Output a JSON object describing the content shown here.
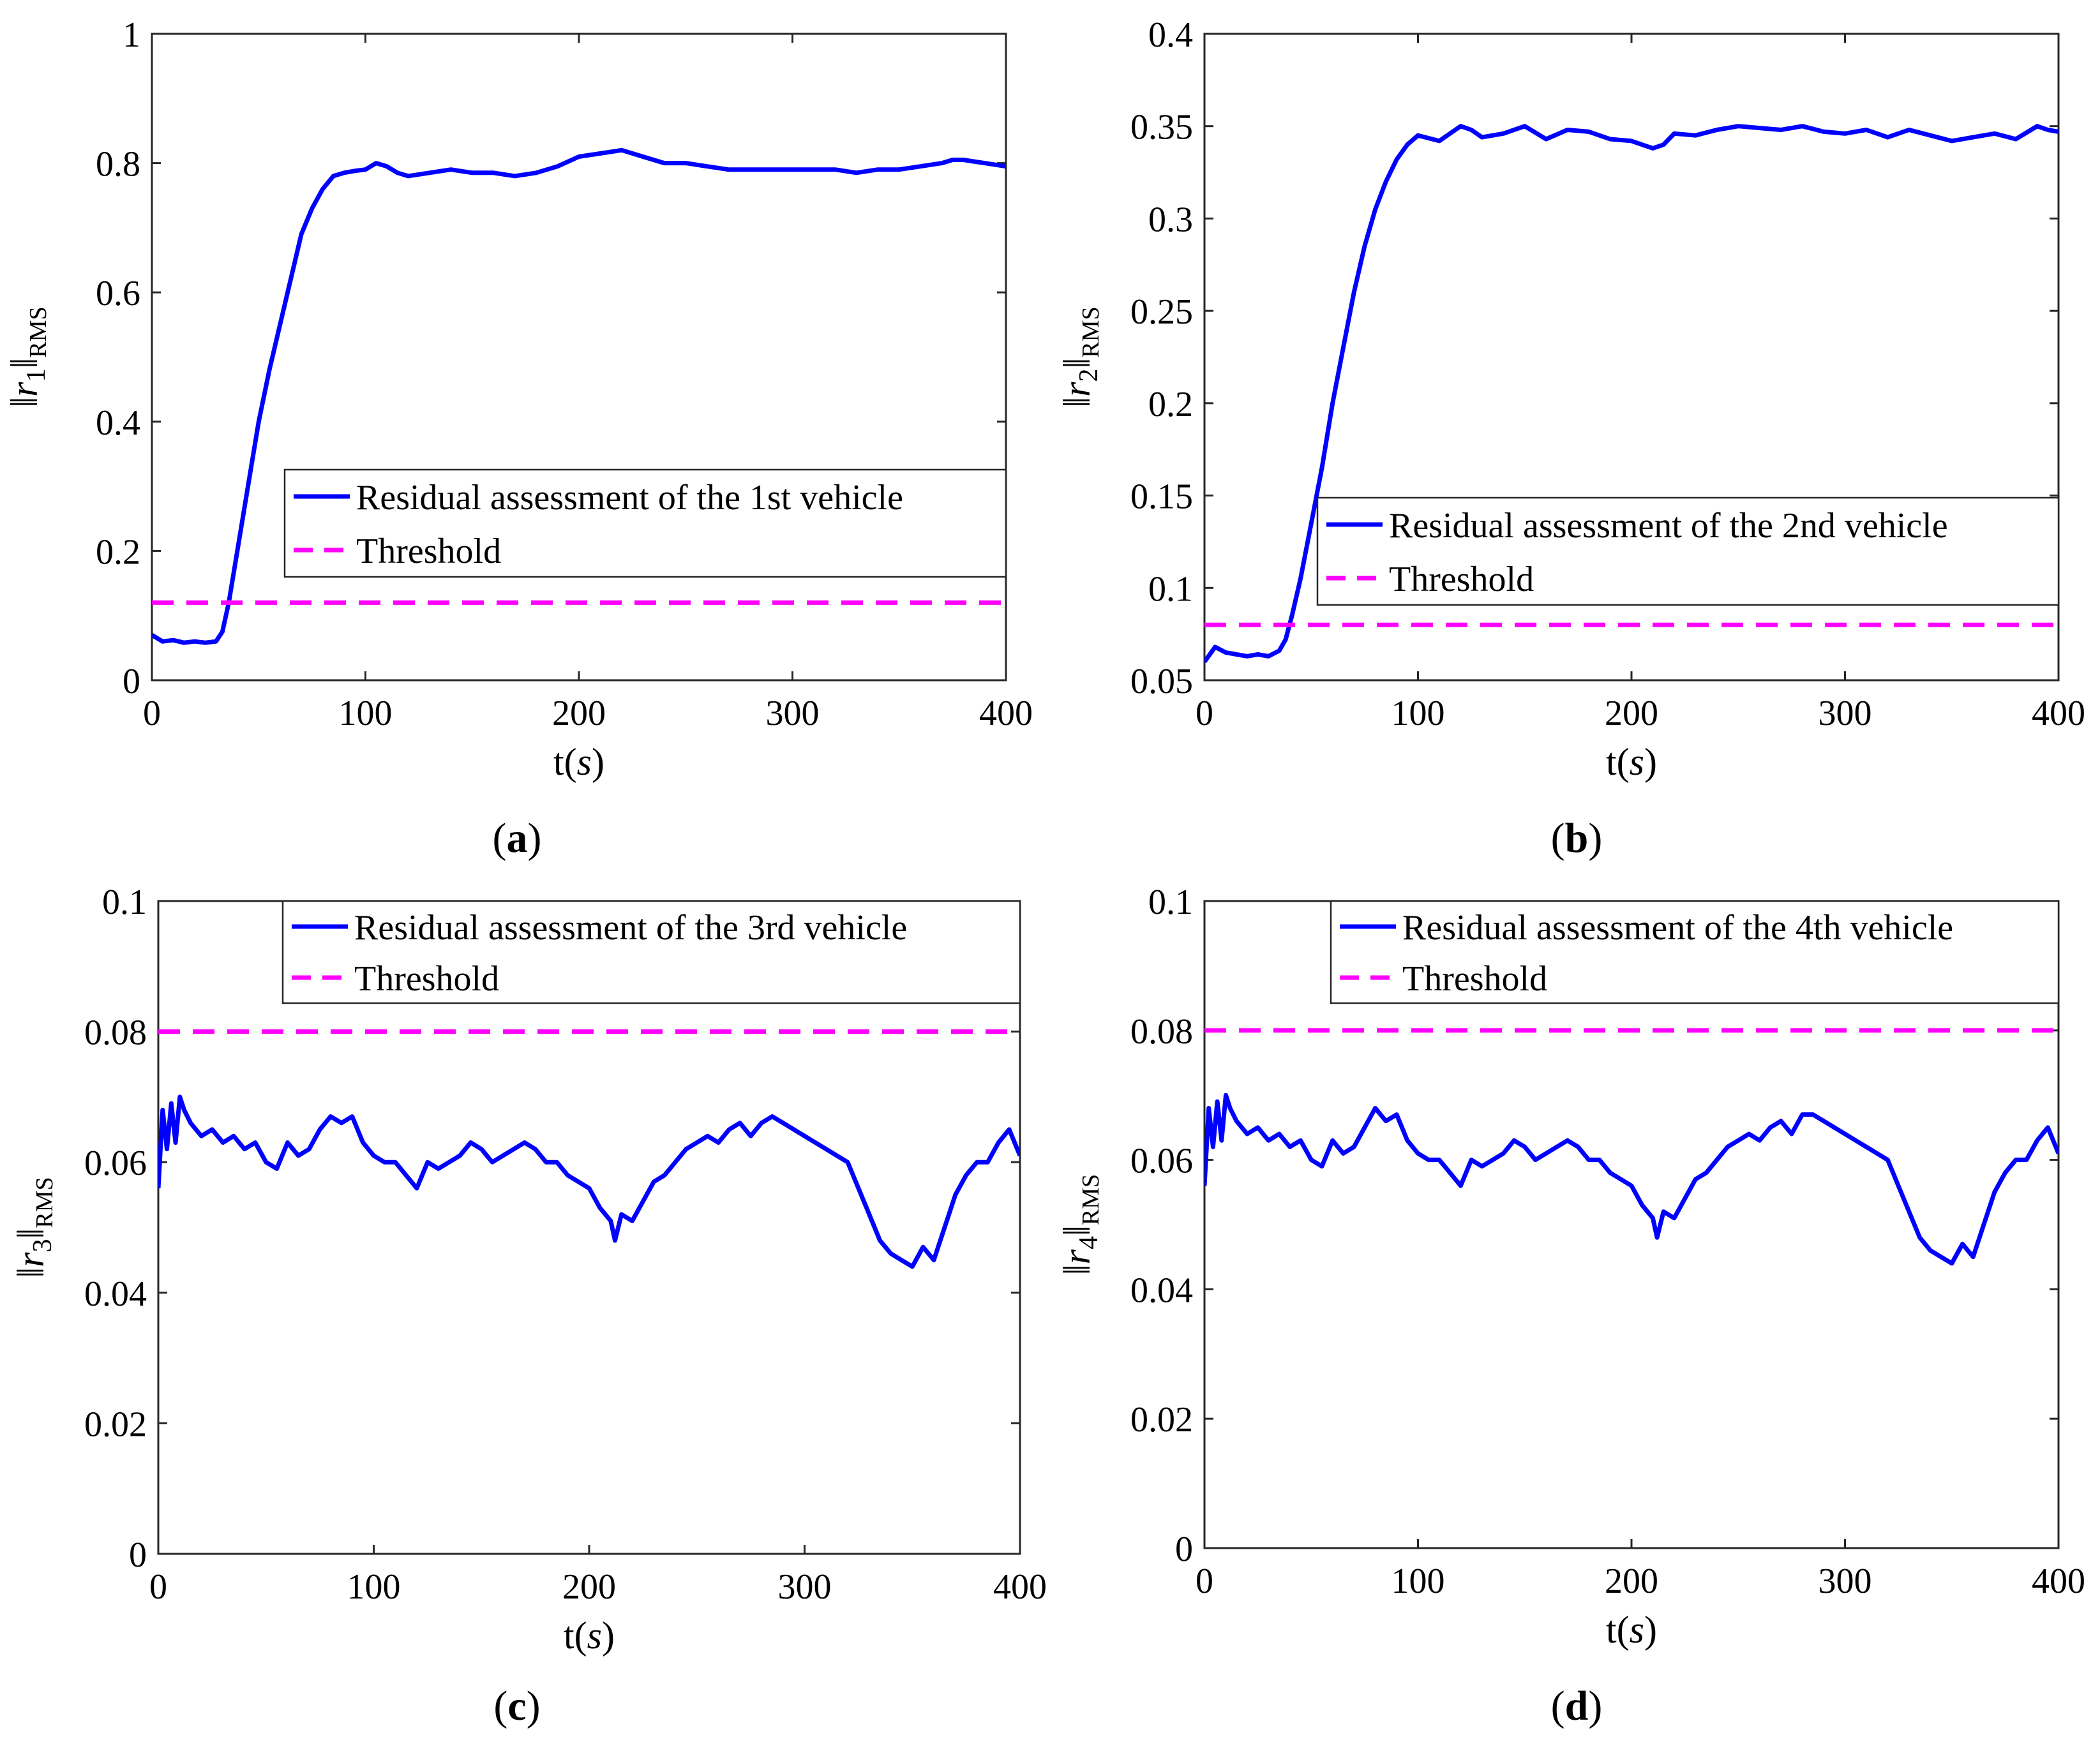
{
  "colors": {
    "series": "#0000ff",
    "threshold": "#ff00ff",
    "axis": "#262626"
  },
  "chart_data": [
    {
      "type": "line",
      "panel_label": "a",
      "xlabel": "t",
      "xlabel_unit": "s",
      "ylabel_base": "r",
      "ylabel_index": "1",
      "ylabel_sub": "RMS",
      "xlim": [
        0,
        400
      ],
      "ylim": [
        0,
        1
      ],
      "xticks": [
        0,
        100,
        200,
        300,
        400
      ],
      "xtick_labels": [
        "0",
        "100",
        "200",
        "300",
        "400"
      ],
      "yticks": [
        0,
        0.2,
        0.4,
        0.6,
        0.8,
        1
      ],
      "ytick_labels": [
        "0",
        "0.2",
        "0.4",
        "0.6",
        "0.8",
        "1"
      ],
      "legend_position": "center-right",
      "series": [
        {
          "name": "Residual assessment of the 1st vehicle",
          "style": "solid",
          "x": [
            0,
            5,
            10,
            15,
            20,
            25,
            30,
            33,
            36,
            40,
            45,
            50,
            55,
            60,
            65,
            70,
            75,
            80,
            85,
            90,
            95,
            100,
            105,
            110,
            115,
            120,
            130,
            140,
            150,
            160,
            170,
            180,
            190,
            200,
            210,
            220,
            230,
            240,
            250,
            260,
            270,
            280,
            290,
            300,
            310,
            320,
            330,
            340,
            350,
            360,
            370,
            375,
            380,
            390,
            400
          ],
          "y": [
            0.07,
            0.06,
            0.062,
            0.058,
            0.06,
            0.058,
            0.06,
            0.075,
            0.12,
            0.2,
            0.3,
            0.4,
            0.48,
            0.55,
            0.62,
            0.69,
            0.73,
            0.76,
            0.78,
            0.785,
            0.788,
            0.79,
            0.8,
            0.795,
            0.785,
            0.78,
            0.785,
            0.79,
            0.785,
            0.785,
            0.78,
            0.785,
            0.795,
            0.81,
            0.815,
            0.82,
            0.81,
            0.8,
            0.8,
            0.795,
            0.79,
            0.79,
            0.79,
            0.79,
            0.79,
            0.79,
            0.785,
            0.79,
            0.79,
            0.795,
            0.8,
            0.805,
            0.805,
            0.8,
            0.795
          ]
        },
        {
          "name": "Threshold",
          "style": "dashed",
          "x": [
            0,
            400
          ],
          "y": [
            0.12,
            0.12
          ]
        }
      ]
    },
    {
      "type": "line",
      "panel_label": "b",
      "xlabel": "t",
      "xlabel_unit": "s",
      "ylabel_base": "r",
      "ylabel_index": "2",
      "ylabel_sub": "RMS",
      "xlim": [
        0,
        400
      ],
      "ylim": [
        0.05,
        0.4
      ],
      "xticks": [
        0,
        100,
        200,
        300,
        400
      ],
      "xtick_labels": [
        "0",
        "100",
        "200",
        "300",
        "400"
      ],
      "yticks": [
        0.05,
        0.1,
        0.15,
        0.2,
        0.25,
        0.3,
        0.35,
        0.4
      ],
      "ytick_labels": [
        "0.05",
        "0.1",
        "0.15",
        "0.2",
        "0.25",
        "0.3",
        "0.35",
        "0.4"
      ],
      "legend_position": "center-right",
      "series": [
        {
          "name": "Residual assessment of the 2nd vehicle",
          "style": "solid",
          "x": [
            0,
            5,
            10,
            15,
            20,
            25,
            30,
            35,
            38,
            41,
            45,
            50,
            55,
            60,
            65,
            70,
            75,
            80,
            85,
            90,
            95,
            100,
            110,
            120,
            125,
            130,
            140,
            150,
            160,
            170,
            180,
            190,
            200,
            210,
            215,
            220,
            230,
            240,
            250,
            260,
            270,
            280,
            290,
            300,
            310,
            320,
            330,
            340,
            350,
            360,
            370,
            380,
            390,
            395,
            400
          ],
          "y": [
            0.06,
            0.068,
            0.065,
            0.064,
            0.063,
            0.064,
            0.063,
            0.066,
            0.072,
            0.085,
            0.105,
            0.135,
            0.165,
            0.2,
            0.23,
            0.26,
            0.285,
            0.305,
            0.32,
            0.332,
            0.34,
            0.345,
            0.342,
            0.35,
            0.348,
            0.344,
            0.346,
            0.35,
            0.343,
            0.348,
            0.347,
            0.343,
            0.342,
            0.338,
            0.34,
            0.346,
            0.345,
            0.348,
            0.35,
            0.349,
            0.348,
            0.35,
            0.347,
            0.346,
            0.348,
            0.344,
            0.348,
            0.345,
            0.342,
            0.344,
            0.346,
            0.343,
            0.35,
            0.348,
            0.347
          ]
        },
        {
          "name": "Threshold",
          "style": "dashed",
          "x": [
            0,
            400
          ],
          "y": [
            0.08,
            0.08
          ]
        }
      ]
    },
    {
      "type": "line",
      "panel_label": "c",
      "xlabel": "t",
      "xlabel_unit": "s",
      "ylabel_base": "r",
      "ylabel_index": "3",
      "ylabel_sub": "RMS",
      "xlim": [
        0,
        400
      ],
      "ylim": [
        0,
        0.1
      ],
      "xticks": [
        0,
        100,
        200,
        300,
        400
      ],
      "xtick_labels": [
        "0",
        "100",
        "200",
        "300",
        "400"
      ],
      "yticks": [
        0,
        0.02,
        0.04,
        0.06,
        0.08,
        0.1
      ],
      "ytick_labels": [
        "0",
        "0.02",
        "0.04",
        "0.06",
        "0.08",
        "0.1"
      ],
      "legend_position": "top-right",
      "series": [
        {
          "name": "Residual assessment of the 3rd vehicle",
          "style": "solid",
          "x": [
            0,
            2,
            4,
            6,
            8,
            10,
            12,
            15,
            20,
            25,
            30,
            35,
            40,
            45,
            50,
            55,
            60,
            65,
            70,
            75,
            80,
            85,
            90,
            95,
            100,
            105,
            110,
            115,
            120,
            125,
            130,
            135,
            140,
            145,
            150,
            155,
            160,
            165,
            170,
            175,
            180,
            185,
            190,
            195,
            200,
            205,
            210,
            212,
            215,
            220,
            225,
            230,
            235,
            240,
            245,
            250,
            255,
            260,
            265,
            270,
            275,
            280,
            285,
            290,
            295,
            300,
            305,
            310,
            315,
            320,
            325,
            330,
            335,
            340,
            345,
            350,
            355,
            360,
            365,
            370,
            375,
            380,
            385,
            390,
            395,
            400
          ],
          "y": [
            0.056,
            0.068,
            0.062,
            0.069,
            0.063,
            0.07,
            0.068,
            0.066,
            0.064,
            0.065,
            0.063,
            0.064,
            0.062,
            0.063,
            0.06,
            0.059,
            0.063,
            0.061,
            0.062,
            0.065,
            0.067,
            0.066,
            0.067,
            0.063,
            0.061,
            0.06,
            0.06,
            0.058,
            0.056,
            0.06,
            0.059,
            0.06,
            0.061,
            0.063,
            0.062,
            0.06,
            0.061,
            0.062,
            0.063,
            0.062,
            0.06,
            0.06,
            0.058,
            0.057,
            0.056,
            0.053,
            0.051,
            0.048,
            0.052,
            0.051,
            0.054,
            0.057,
            0.058,
            0.06,
            0.062,
            0.063,
            0.064,
            0.063,
            0.065,
            0.066,
            0.064,
            0.066,
            0.067,
            0.066,
            0.065,
            0.064,
            0.063,
            0.062,
            0.061,
            0.06,
            0.056,
            0.052,
            0.048,
            0.046,
            0.045,
            0.044,
            0.047,
            0.045,
            0.05,
            0.055,
            0.058,
            0.06,
            0.06,
            0.063,
            0.065,
            0.061
          ]
        },
        {
          "name": "Threshold",
          "style": "dashed",
          "x": [
            0,
            400
          ],
          "y": [
            0.08,
            0.08
          ]
        }
      ]
    },
    {
      "type": "line",
      "panel_label": "d",
      "xlabel": "t",
      "xlabel_unit": "s",
      "ylabel_base": "r",
      "ylabel_index": "4",
      "ylabel_sub": "RMS",
      "xlim": [
        0,
        400
      ],
      "ylim": [
        0,
        0.1
      ],
      "xticks": [
        0,
        100,
        200,
        300,
        400
      ],
      "xtick_labels": [
        "0",
        "100",
        "200",
        "300",
        "400"
      ],
      "yticks": [
        0,
        0.02,
        0.04,
        0.06,
        0.08,
        0.1
      ],
      "ytick_labels": [
        "0",
        "0.02",
        "0.04",
        "0.06",
        "0.08",
        "0.1"
      ],
      "legend_position": "top-right",
      "series": [
        {
          "name": "Residual assessment of the 4th vehicle",
          "style": "solid",
          "x": [
            0,
            2,
            4,
            6,
            8,
            10,
            12,
            15,
            20,
            25,
            30,
            35,
            40,
            45,
            50,
            55,
            60,
            65,
            70,
            75,
            80,
            85,
            90,
            95,
            100,
            105,
            110,
            115,
            120,
            125,
            130,
            135,
            140,
            145,
            150,
            155,
            160,
            165,
            170,
            175,
            180,
            185,
            190,
            195,
            200,
            205,
            210,
            212,
            215,
            220,
            225,
            230,
            235,
            240,
            245,
            250,
            255,
            260,
            265,
            270,
            275,
            280,
            285,
            290,
            295,
            300,
            305,
            310,
            315,
            320,
            325,
            330,
            335,
            340,
            345,
            350,
            355,
            360,
            365,
            370,
            375,
            380,
            385,
            390,
            395,
            400
          ],
          "y": [
            0.056,
            0.068,
            0.062,
            0.069,
            0.063,
            0.07,
            0.068,
            0.066,
            0.064,
            0.065,
            0.063,
            0.064,
            0.062,
            0.063,
            0.06,
            0.059,
            0.063,
            0.061,
            0.062,
            0.065,
            0.068,
            0.066,
            0.067,
            0.063,
            0.061,
            0.06,
            0.06,
            0.058,
            0.056,
            0.06,
            0.059,
            0.06,
            0.061,
            0.063,
            0.062,
            0.06,
            0.061,
            0.062,
            0.063,
            0.062,
            0.06,
            0.06,
            0.058,
            0.057,
            0.056,
            0.053,
            0.051,
            0.048,
            0.052,
            0.051,
            0.054,
            0.057,
            0.058,
            0.06,
            0.062,
            0.063,
            0.064,
            0.063,
            0.065,
            0.066,
            0.064,
            0.067,
            0.067,
            0.066,
            0.065,
            0.064,
            0.063,
            0.062,
            0.061,
            0.06,
            0.056,
            0.052,
            0.048,
            0.046,
            0.045,
            0.044,
            0.047,
            0.045,
            0.05,
            0.055,
            0.058,
            0.06,
            0.06,
            0.063,
            0.065,
            0.061
          ]
        },
        {
          "name": "Threshold",
          "style": "dashed",
          "x": [
            0,
            400
          ],
          "y": [
            0.08,
            0.08
          ]
        }
      ]
    }
  ]
}
